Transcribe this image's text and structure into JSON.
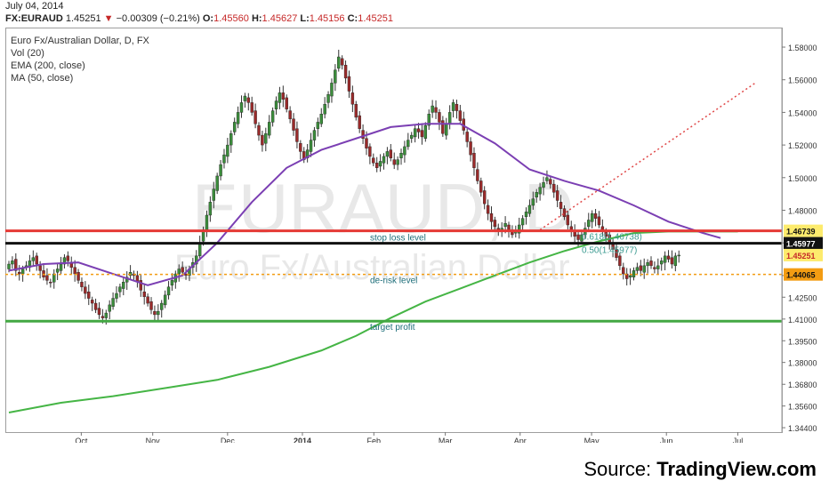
{
  "header": {
    "date": "July 04, 2014",
    "symbol": "FX:EURAUD",
    "last": "1.45251",
    "change": "−0.00309 (−0.21%)",
    "o_label": "O:",
    "o_value": "1.45560",
    "h_label": "H:",
    "h_value": "1.45627",
    "l_label": "L:",
    "l_value": "1.45156",
    "c_label": "C:",
    "c_value": "1.45251"
  },
  "legend": {
    "title": "Euro Fx/Australian Dollar, D, FX",
    "vol": "Vol (20)",
    "ema": "EMA (200, close)",
    "ma": "MA (50, close)"
  },
  "watermark": {
    "ticker": "EURAUD, D",
    "name": "Euro Fx/Australian Dollar"
  },
  "source": {
    "prefix": "Source: ",
    "brand": "TradingView.com"
  },
  "colors": {
    "up": "#3b8d3b",
    "down": "#9a2a2a",
    "ema": "#45b545",
    "ma": "#7b3fb3",
    "stop_loss": "#e53935",
    "entry": "#111111",
    "derisk": "#f39c12",
    "target": "#43a843",
    "trend": "#e04848"
  },
  "chart_data": {
    "type": "candlestick",
    "title": "Euro Fx/Australian Dollar, D, FX",
    "ylim": [
      1.344,
      1.592
    ],
    "y_ticks": [
      "1.58000",
      "1.56000",
      "1.54000",
      "1.52000",
      "1.50000",
      "1.48000",
      "1.46000",
      "1.44000",
      "1.42500",
      "1.41000",
      "1.39500",
      "1.38000",
      "1.36800",
      "1.35600",
      "1.34400"
    ],
    "x_ticks": [
      {
        "label": "Oct",
        "month": "2013-10"
      },
      {
        "label": "Nov",
        "month": "2013-11"
      },
      {
        "label": "Dec",
        "month": "2013-12"
      },
      {
        "label": "2014",
        "month": "2014-01"
      },
      {
        "label": "Feb",
        "month": "2014-02"
      },
      {
        "label": "Mar",
        "month": "2014-03"
      },
      {
        "label": "Apr",
        "month": "2014-04"
      },
      {
        "label": "May",
        "month": "2014-05"
      },
      {
        "label": "Jun",
        "month": "2014-06"
      },
      {
        "label": "Jul",
        "month": "2014-07"
      }
    ],
    "candles_closes": [
      1.447,
      1.449,
      1.443,
      1.441,
      1.444,
      1.446,
      1.449,
      1.451,
      1.447,
      1.443,
      1.439,
      1.437,
      1.436,
      1.441,
      1.444,
      1.447,
      1.451,
      1.449,
      1.445,
      1.441,
      1.437,
      1.433,
      1.429,
      1.426,
      1.423,
      1.419,
      1.416,
      1.414,
      1.417,
      1.422,
      1.426,
      1.429,
      1.433,
      1.436,
      1.439,
      1.442,
      1.44,
      1.436,
      1.431,
      1.427,
      1.423,
      1.419,
      1.416,
      1.418,
      1.423,
      1.428,
      1.433,
      1.437,
      1.441,
      1.444,
      1.442,
      1.44,
      1.444,
      1.448,
      1.452,
      1.46,
      1.468,
      1.477,
      1.485,
      1.493,
      1.501,
      1.508,
      1.514,
      1.52,
      1.527,
      1.534,
      1.54,
      1.546,
      1.55,
      1.546,
      1.54,
      1.533,
      1.526,
      1.52,
      1.527,
      1.534,
      1.541,
      1.547,
      1.552,
      1.548,
      1.542,
      1.536,
      1.529,
      1.522,
      1.516,
      1.511,
      1.517,
      1.523,
      1.529,
      1.534,
      1.539,
      1.545,
      1.551,
      1.558,
      1.566,
      1.574,
      1.569,
      1.561,
      1.553,
      1.545,
      1.537,
      1.53,
      1.524,
      1.518,
      1.513,
      1.509,
      1.506,
      1.51,
      1.513,
      1.516,
      1.512,
      1.508,
      1.511,
      1.515,
      1.519,
      1.523,
      1.526,
      1.53,
      1.528,
      1.525,
      1.532,
      1.539,
      1.544,
      1.54,
      1.534,
      1.527,
      1.533,
      1.54,
      1.546,
      1.541,
      1.535,
      1.529,
      1.522,
      1.514,
      1.506,
      1.498,
      1.491,
      1.484,
      1.478,
      1.473,
      1.47,
      1.467,
      1.469,
      1.472,
      1.468,
      1.465,
      1.467,
      1.471,
      1.475,
      1.479,
      1.483,
      1.487,
      1.491,
      1.494,
      1.497,
      1.5,
      1.496,
      1.491,
      1.486,
      1.481,
      1.476,
      1.471,
      1.467,
      1.464,
      1.462,
      1.465,
      1.469,
      1.474,
      1.478,
      1.475,
      1.471,
      1.467,
      1.464,
      1.46,
      1.456,
      1.451,
      1.446,
      1.441,
      1.438,
      1.44,
      1.443,
      1.445,
      1.443,
      1.446,
      1.448,
      1.446,
      1.444,
      1.446,
      1.449,
      1.452,
      1.45,
      1.447,
      1.452,
      1.4525
    ],
    "series": [
      {
        "name": "EMA (200, close)",
        "type": "line",
        "points": [
          [
            0,
            1.356
          ],
          [
            15,
            1.362
          ],
          [
            30,
            1.366
          ],
          [
            45,
            1.371
          ],
          [
            60,
            1.376
          ],
          [
            75,
            1.384
          ],
          [
            90,
            1.394
          ],
          [
            100,
            1.403
          ],
          [
            110,
            1.414
          ],
          [
            120,
            1.424
          ],
          [
            130,
            1.432
          ],
          [
            140,
            1.44
          ],
          [
            150,
            1.448
          ],
          [
            160,
            1.455
          ],
          [
            170,
            1.461
          ],
          [
            180,
            1.466
          ],
          [
            190,
            1.467
          ],
          [
            200,
            1.467
          ],
          [
            210,
            1.467
          ]
        ]
      },
      {
        "name": "MA (50, close)",
        "type": "line",
        "points": [
          [
            0,
            1.443
          ],
          [
            10,
            1.447
          ],
          [
            20,
            1.448
          ],
          [
            30,
            1.441
          ],
          [
            40,
            1.434
          ],
          [
            50,
            1.44
          ],
          [
            60,
            1.46
          ],
          [
            70,
            1.485
          ],
          [
            80,
            1.506
          ],
          [
            90,
            1.517
          ],
          [
            100,
            1.524
          ],
          [
            110,
            1.531
          ],
          [
            120,
            1.533
          ],
          [
            130,
            1.533
          ],
          [
            140,
            1.521
          ],
          [
            150,
            1.505
          ],
          [
            160,
            1.498
          ],
          [
            170,
            1.492
          ],
          [
            180,
            1.483
          ],
          [
            190,
            1.473
          ],
          [
            200,
            1.466
          ],
          [
            205,
            1.463
          ]
        ]
      }
    ],
    "levels": [
      {
        "label": "stop loss level",
        "value": 1.46739,
        "axis_label": "1.46739"
      },
      {
        "label": "",
        "value": 1.45977,
        "axis_label": "1.45977"
      },
      {
        "label": "de-risk level",
        "value": 1.44065,
        "axis_label": "1.44065"
      },
      {
        "label": "target profit",
        "value": 1.412,
        "axis_label": ""
      }
    ],
    "last_price_label": "1.45251",
    "fib_labels": [
      "0.618(1.46738)",
      "0.50(1.45977)"
    ],
    "trend_line": {
      "from": [
        153,
        1.468
      ],
      "to": [
        215,
        1.558
      ]
    }
  }
}
